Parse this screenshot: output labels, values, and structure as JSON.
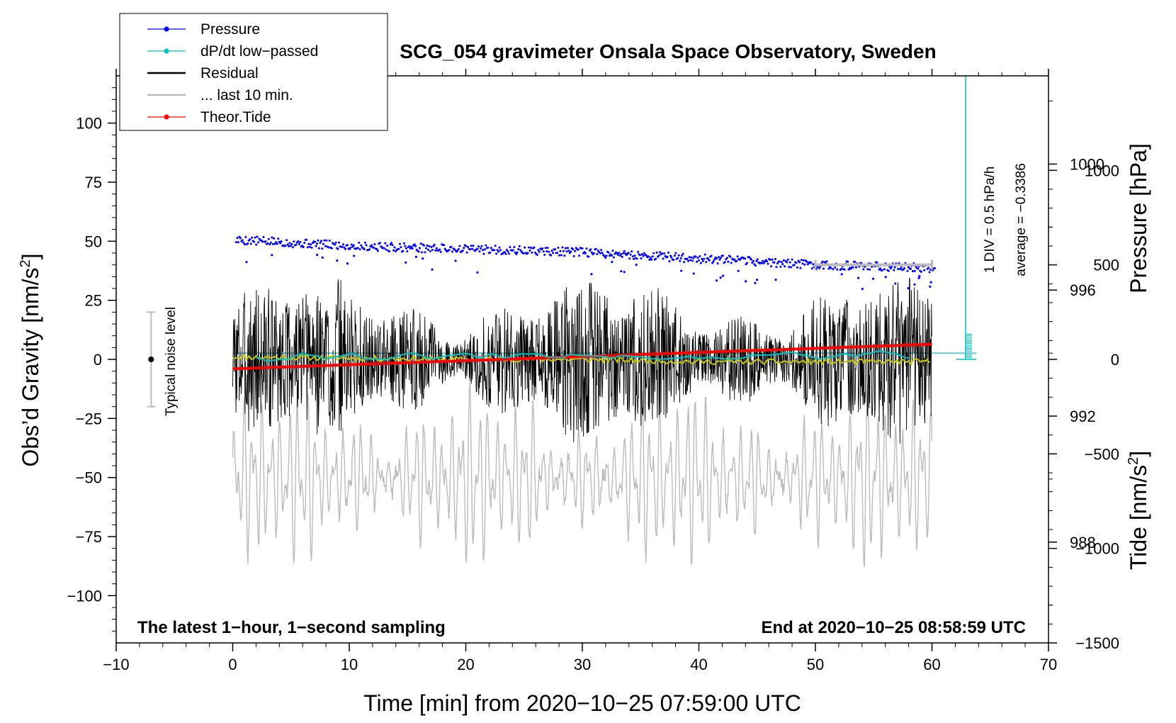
{
  "chart_data": {
    "type": "line",
    "title": "SCG_054 gravimeter Onsala Space Observatory, Sweden",
    "xlabel": "Time [min] from 2020−10−25 07:59:00 UTC",
    "ylabel_left_main": "Obs’d Gravity [nm/s",
    "ylabel_left_sup": "2",
    "ylabel_left_end": "]",
    "ylabel_right_pressure": "Pressure [hPa]",
    "ylabel_right_tide_main": "Tide [nm/s",
    "ylabel_right_tide_sup": "2",
    "ylabel_right_tide_end": "]",
    "xlim": [
      -10,
      70
    ],
    "ylim_gravity": [
      -120,
      120
    ],
    "ylim_pressure": [
      984.8,
      1002.8
    ],
    "ylim_tide": [
      -1500,
      1500
    ],
    "x_ticks": [
      "−10",
      "0",
      "10",
      "20",
      "30",
      "40",
      "50",
      "60",
      "70"
    ],
    "x_tick_values": [
      -10,
      0,
      10,
      20,
      30,
      40,
      50,
      60,
      70
    ],
    "gravity_ticks": [
      "100",
      "75",
      "50",
      "25",
      "0",
      "−25",
      "−50",
      "−75",
      "−100"
    ],
    "gravity_tick_values": [
      100,
      75,
      50,
      25,
      0,
      -25,
      -50,
      -75,
      -100
    ],
    "pressure_ticks": [
      "1000",
      "996",
      "992",
      "988"
    ],
    "pressure_tick_values": [
      1000,
      996,
      992,
      988
    ],
    "tide_ticks": [
      "1000",
      "500",
      "0",
      "−500",
      "−1000",
      "−1500"
    ],
    "tide_tick_values": [
      1000,
      500,
      0,
      -500,
      -1000,
      -1500
    ],
    "legend": [
      {
        "label": "Pressure",
        "color": "#0000ff",
        "marker": "dot"
      },
      {
        "label": "dP/dt low−passed",
        "color": "#00c0c0",
        "marker": "dot"
      },
      {
        "label": "Residual",
        "color": "#000000",
        "marker": "line"
      },
      {
        "label": "... last 10 min.",
        "color": "#bbbbbb",
        "marker": "line"
      },
      {
        "label": "Theor.Tide",
        "color": "#ff0000",
        "marker": "dot"
      }
    ],
    "series": [
      {
        "name": "Pressure",
        "unit": "hPa",
        "color": "#0000ff",
        "x": [
          0,
          10,
          20,
          30,
          40,
          50,
          60
        ],
        "values": [
          997.6,
          997.4,
          997.3,
          997.2,
          997.0,
          996.8,
          996.7
        ]
      },
      {
        "name": "dP/dt low-passed",
        "unit": "hPa/h",
        "color": "#00c0c0",
        "x": [
          2,
          3,
          4.5,
          6,
          7,
          8,
          9,
          10.2,
          11.5,
          13,
          15.3,
          17.2,
          18.5,
          20,
          21.3,
          22.2,
          23.3,
          24.7,
          26,
          27.3,
          28.2,
          29,
          30,
          31.6,
          32.5,
          33.5,
          35,
          36,
          37,
          38.5,
          39,
          40,
          41,
          42.5,
          43.5,
          44.7,
          46,
          48,
          49,
          50.5,
          51.5,
          52.5,
          53.5,
          54.5,
          55.6,
          56.6,
          58
        ],
        "values": [
          0.6,
          -0.4,
          0.05,
          1.75,
          1.2,
          0.2,
          0.9,
          1.8,
          0.2,
          0.05,
          1.95,
          0.2,
          1.2,
          1.85,
          0.45,
          1.75,
          0.5,
          1.7,
          1.7,
          0.65,
          0.55,
          1.55,
          1.2,
          1.0,
          0.5,
          1.15,
          0.8,
          0.2,
          0.1,
          0.55,
          0.9,
          0.3,
          0.6,
          0.15,
          0.3,
          1.3,
          1.4,
          2.2,
          1.3,
          0.2,
          0.9,
          1.7,
          1.1,
          1.9,
          2.65,
          1.9,
          0.4
        ]
      },
      {
        "name": "Residual",
        "unit": "nm/s²",
        "color": "#000000",
        "amplitude": 25,
        "x_range": [
          0,
          60
        ]
      },
      {
        "name": "Residual smoothed",
        "unit": "nm/s²",
        "color": "#c0c000",
        "x": [
          0,
          10,
          20,
          30,
          40,
          50,
          60
        ],
        "values": [
          1,
          0.5,
          0,
          0,
          -1,
          -1,
          -1
        ]
      },
      {
        "name": "... last 10 min.",
        "unit": "nm/s²",
        "color": "#bbbbbb",
        "x_range": [
          0,
          60
        ],
        "amplitude": 25
      },
      {
        "name": "Theor.Tide",
        "unit": "nm/s²",
        "color": "#ff0000",
        "x": [
          0,
          60
        ],
        "values": [
          -50,
          80
        ]
      }
    ],
    "last10_bar": {
      "x_start": 50,
      "x_end": 60,
      "tide_value": 500
    },
    "pressure_average_line": 994,
    "noise_bar": {
      "x": -7,
      "center": 0,
      "low": -20,
      "high": 20
    },
    "annotations": {
      "noise_label": "Typical noise level",
      "div_label": "1 DIV = 0.5 hPa/h",
      "average_label": "average = −0.3386",
      "left_note": "The latest 1−hour, 1−second sampling",
      "right_note": "End at 2020−10−25 08:58:59 UTC"
    }
  }
}
